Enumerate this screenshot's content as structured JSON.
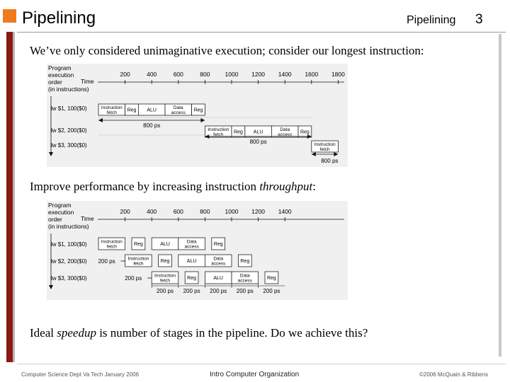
{
  "slide": {
    "title": "Pipelining",
    "header_topic": "Pipelining",
    "page_number": "3",
    "paragraph1": "We’ve only considered unimaginative execution; consider our longest instruction:",
    "paragraph2_pre": "Improve performance by increasing instruction ",
    "paragraph2_em": "throughput",
    "paragraph2_post": ":",
    "paragraph3_pre": "Ideal ",
    "paragraph3_em": "speedup",
    "paragraph3_post": " is number of stages in the pipeline.  Do we achieve this?",
    "footer_left": "Computer Science Dept Va Tech January 2006",
    "footer_center": "Intro Computer Organization",
    "footer_right": "©2006  McQuain & Ribbens",
    "accent_color": "#f07a1e",
    "bar_color": "#8b1a13"
  },
  "diagram1": {
    "order_label": [
      "Program",
      "execution",
      "order",
      "(in instructions)"
    ],
    "time_label": "Time",
    "time_ticks": [
      "200",
      "400",
      "600",
      "800",
      "1000",
      "1200",
      "1400",
      "1600",
      "1800"
    ],
    "instructions": [
      "lw  $1, 100($0)",
      "lw  $2, 200($0)",
      "lw  $3, 300($0)"
    ],
    "stages": [
      "Instruction fetch",
      "Reg",
      "ALU",
      "Data access",
      "Reg"
    ],
    "interval_labels": [
      "800 ps",
      "800 ps",
      "800 ps"
    ]
  },
  "diagram2": {
    "order_label": [
      "Program",
      "execution",
      "order",
      "(in instructions)"
    ],
    "time_label": "Time",
    "time_ticks": [
      "200",
      "400",
      "600",
      "800",
      "1000",
      "1200",
      "1400"
    ],
    "instructions": [
      "lw  $1, 100($0)",
      "lw  $2, 200($0)",
      "lw  $3, 300($0)"
    ],
    "stages": [
      "Instruction fetch",
      "Reg",
      "ALU",
      "Data access",
      "Reg"
    ],
    "side_labels": [
      "200 ps",
      "200 ps"
    ],
    "bottom_labels": [
      "200 ps",
      "200 ps",
      "200 ps",
      "200 ps",
      "200 ps"
    ]
  }
}
